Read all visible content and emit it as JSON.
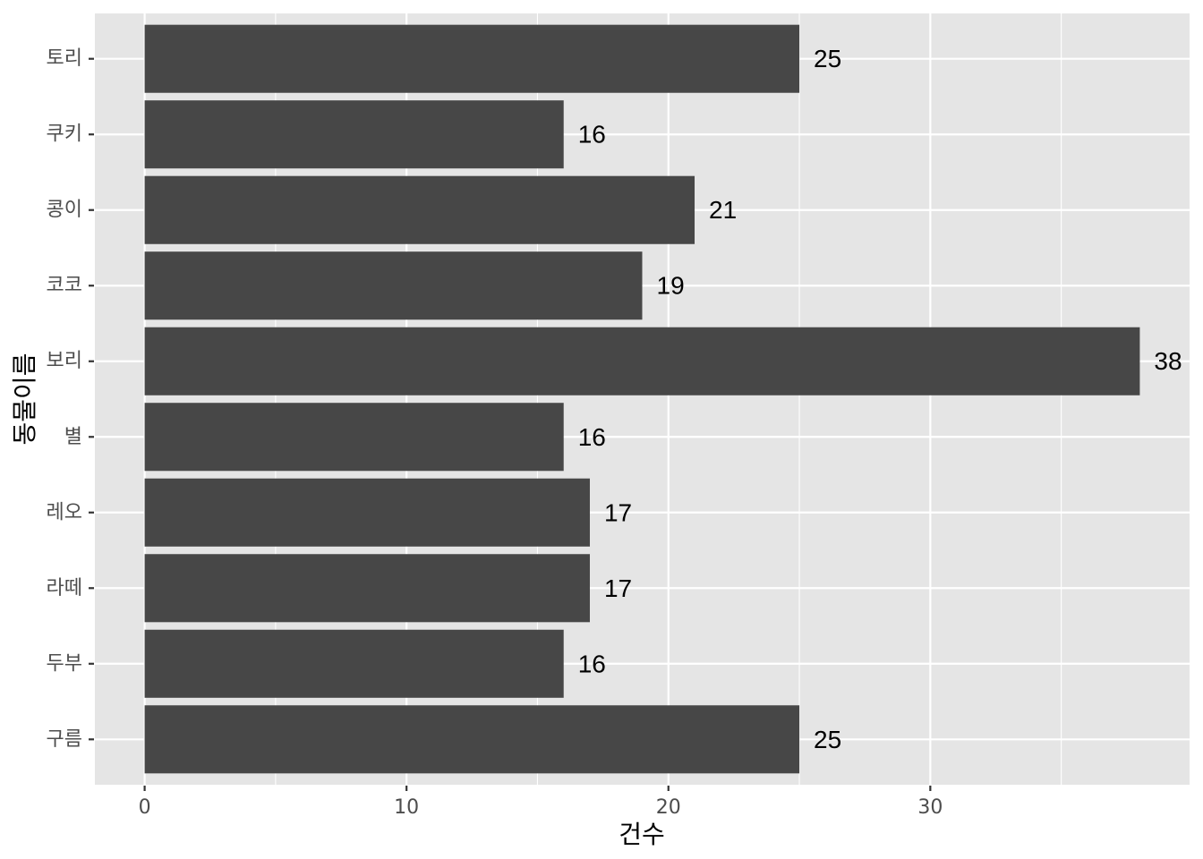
{
  "chart_data": {
    "type": "bar",
    "orientation": "horizontal",
    "categories": [
      "구름",
      "두부",
      "라떼",
      "레오",
      "별",
      "보리",
      "코코",
      "콩이",
      "쿠키",
      "토리"
    ],
    "values": [
      25,
      16,
      17,
      17,
      16,
      38,
      19,
      21,
      16,
      25
    ],
    "xlabel": "건수",
    "ylabel": "동물이름",
    "xlim": [
      -1.9,
      39.9
    ],
    "xticks": [
      0,
      10,
      20,
      30
    ],
    "grid": true,
    "legend": "none",
    "colors": {
      "bar": "#474747",
      "panel": "#e5e5e5",
      "grid": "#ffffff",
      "data_label": "#000000"
    }
  }
}
